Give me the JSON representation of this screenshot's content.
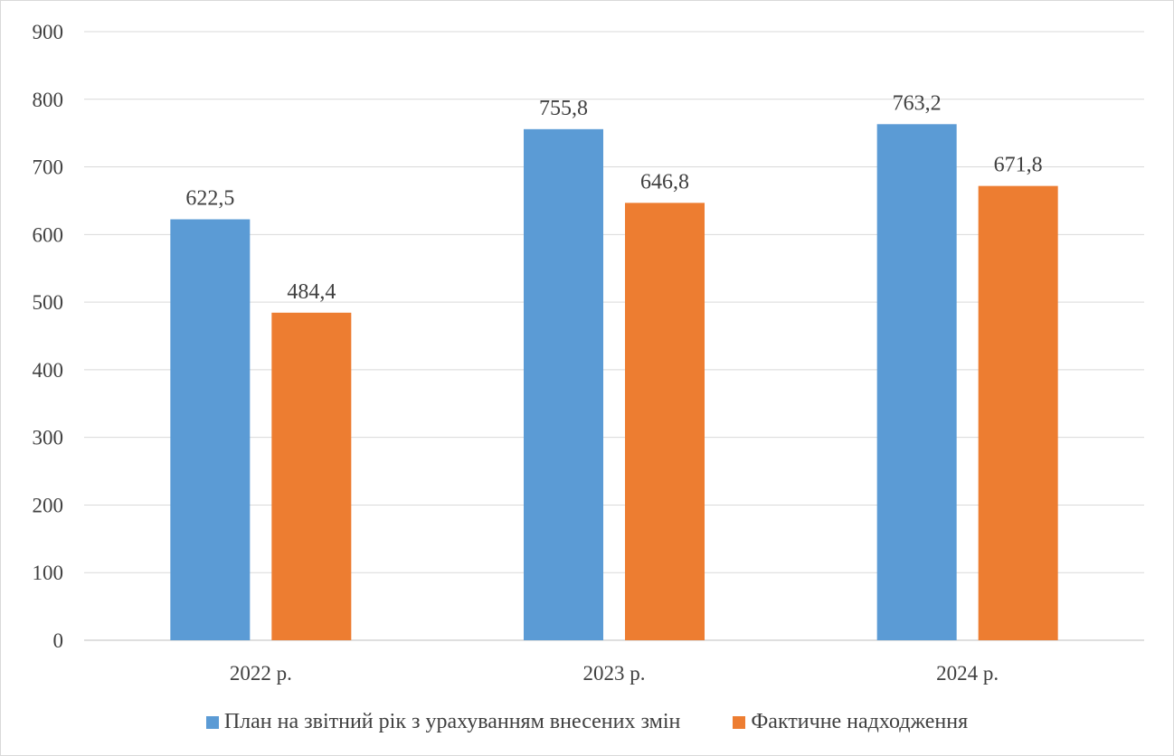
{
  "chart_data": {
    "type": "bar",
    "categories": [
      "2022 р.",
      "2023 р.",
      "2024 р."
    ],
    "series": [
      {
        "name": "План на звітний рік з урахуванням внесених змін",
        "values": [
          622.5,
          755.8,
          763.2
        ],
        "labels": [
          "622,5",
          "755,8",
          "763,2"
        ],
        "color": "#5b9bd5"
      },
      {
        "name": "Фактичне надходження",
        "values": [
          484.4,
          646.8,
          671.8
        ],
        "labels": [
          "484,4",
          "646,8",
          "671,8"
        ],
        "color": "#ed7d31"
      }
    ],
    "ylim": [
      0,
      900
    ],
    "yticks": [
      "0",
      "100",
      "200",
      "300",
      "400",
      "500",
      "600",
      "700",
      "800",
      "900"
    ],
    "title": "",
    "xlabel": "",
    "ylabel": "",
    "grid": true,
    "legend_position": "bottom"
  }
}
